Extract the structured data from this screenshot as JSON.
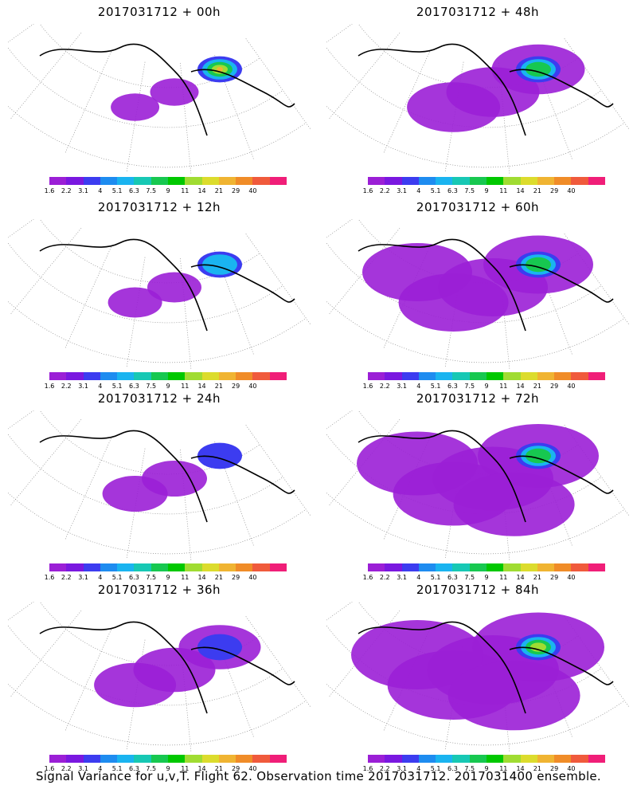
{
  "panels": [
    {
      "title": "2017031712 + 00h",
      "coverage": 0.15,
      "max_level": 10
    },
    {
      "title": "2017031712 + 48h",
      "coverage": 0.55,
      "max_level": 7
    },
    {
      "title": "2017031712 + 12h",
      "coverage": 0.2,
      "max_level": 5
    },
    {
      "title": "2017031712 + 60h",
      "coverage": 0.7,
      "max_level": 7
    },
    {
      "title": "2017031712 + 24h",
      "coverage": 0.3,
      "max_level": 3
    },
    {
      "title": "2017031712 + 72h",
      "coverage": 0.8,
      "max_level": 7
    },
    {
      "title": "2017031712 + 36h",
      "coverage": 0.45,
      "max_level": 3
    },
    {
      "title": "2017031712 + 84h",
      "coverage": 0.9,
      "max_level": 8
    }
  ],
  "colorbar": {
    "labels": [
      "1.6",
      "2.2",
      "3.1",
      "4",
      "5.1",
      "6.3",
      "7.5",
      "9",
      "11",
      "14",
      "21",
      "29",
      "40"
    ],
    "colors": [
      "#9b1fd6",
      "#7a18e0",
      "#3c3cf0",
      "#1e8cf0",
      "#1ab4f0",
      "#17c8b4",
      "#17c850",
      "#00c800",
      "#a0dc32",
      "#dcdc2d",
      "#f0b432",
      "#f08c28",
      "#f05a3c",
      "#f01e78"
    ]
  },
  "caption": "Signal Variance for u,v,T. Flight 62. Observation time 2017031712. 2017031400 ensemble.",
  "chart_data": {
    "type": "heatmap",
    "title": "Signal Variance for u,v,T. Flight 62. Observation time 2017031712. 2017031400 ensemble.",
    "forecast_times": [
      "00h",
      "12h",
      "24h",
      "36h",
      "48h",
      "60h",
      "72h",
      "84h"
    ],
    "color_levels": [
      1.6,
      2.2,
      3.1,
      4,
      5.1,
      6.3,
      7.5,
      9,
      11,
      14,
      21,
      29,
      40
    ]
  }
}
